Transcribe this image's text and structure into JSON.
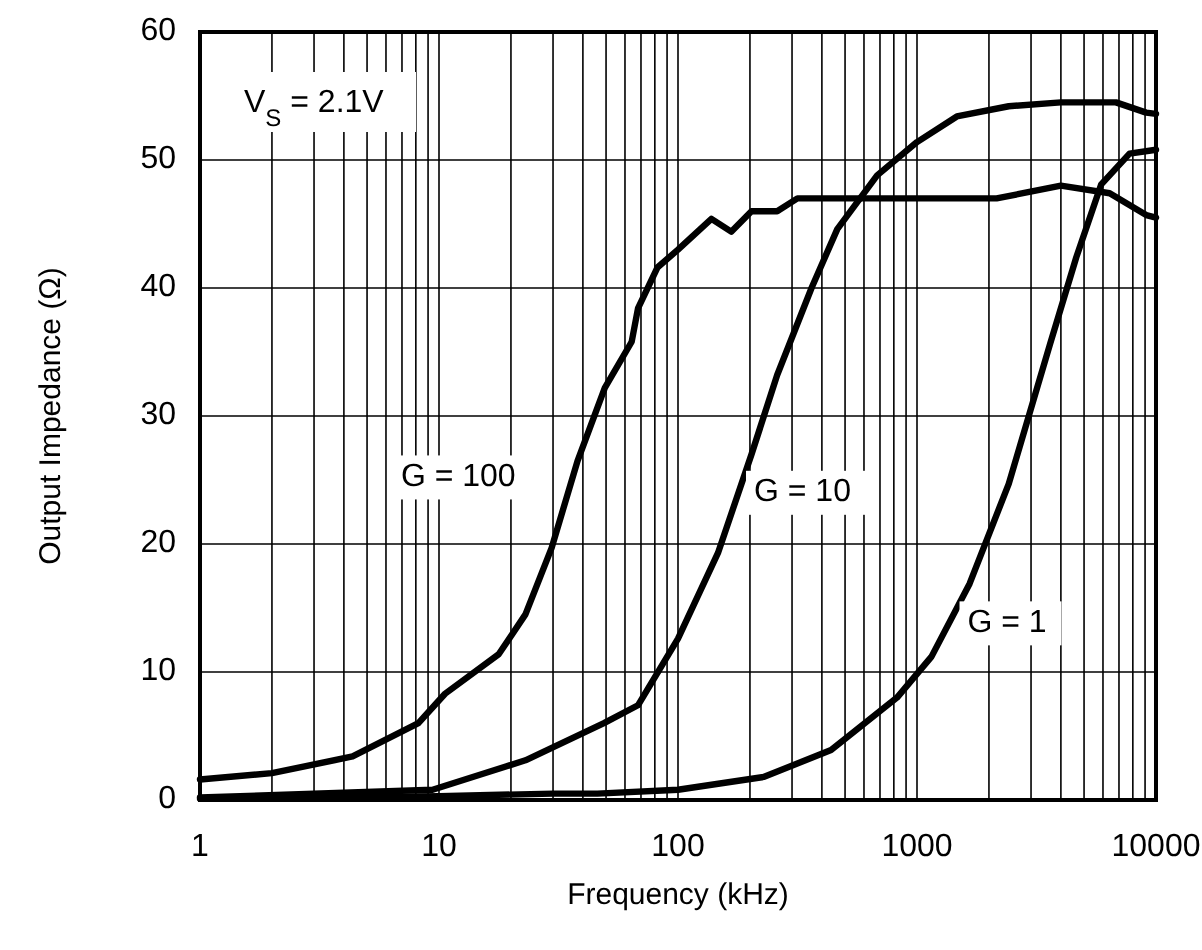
{
  "chart_data": {
    "type": "line",
    "xlabel": "Frequency (kHz)",
    "ylabel": "Output Impedance (Ω)",
    "log": "x",
    "xlim": [
      1,
      10000
    ],
    "xticks": [
      1,
      10,
      100,
      1000,
      10000
    ],
    "ylim": [
      0,
      60
    ],
    "yticks": [
      0,
      10,
      20,
      30,
      40,
      50,
      60
    ],
    "grid": true,
    "marker": "none",
    "line_style": "solid",
    "annotations": [
      "V$_{S}$ = 2.1V"
    ],
    "series": [
      {
        "name": "G = 100",
        "color": "#000000",
        "x": [
          1,
          2,
          4.35,
          8.2,
          10.6,
          17.8,
          23,
          29.6,
          38,
          49.4,
          64,
          68,
          82,
          100,
          138,
          167,
          203,
          260,
          316,
          595,
          2154,
          4000,
          6400,
          9100,
          10000
        ],
        "values": [
          1.6,
          2.1,
          3.4,
          6,
          8.3,
          11.4,
          14.5,
          19.7,
          26.5,
          32.2,
          35.8,
          38.4,
          41.6,
          43,
          45.4,
          44.4,
          46,
          46,
          47,
          47,
          47,
          48,
          47.4,
          45.7,
          45.5
        ]
      },
      {
        "name": "G = 10",
        "color": "#000000",
        "x": [
          1,
          9.4,
          23,
          49,
          68,
          100,
          147,
          203,
          260,
          362,
          464,
          681,
          1000,
          1468,
          2420,
          4000,
          6800,
          9100,
          10000
        ],
        "values": [
          0.2,
          0.8,
          3.1,
          6,
          7.4,
          12.6,
          19.3,
          27,
          33.2,
          40,
          44.6,
          48.8,
          51.4,
          53.4,
          54.2,
          54.5,
          54.5,
          53.7,
          53.6
        ]
      },
      {
        "name": "G = 1",
        "color": "#000000",
        "x": [
          1,
          10,
          30,
          46,
          100,
          228,
          437,
          825,
          1150,
          1660,
          2420,
          3600,
          4640,
          5900,
          7750,
          10000
        ],
        "values": [
          0.1,
          0.3,
          0.5,
          0.5,
          0.8,
          1.8,
          3.9,
          8,
          11.2,
          16.9,
          24.7,
          35.6,
          42.4,
          48.1,
          50.5,
          50.8
        ]
      }
    ]
  }
}
